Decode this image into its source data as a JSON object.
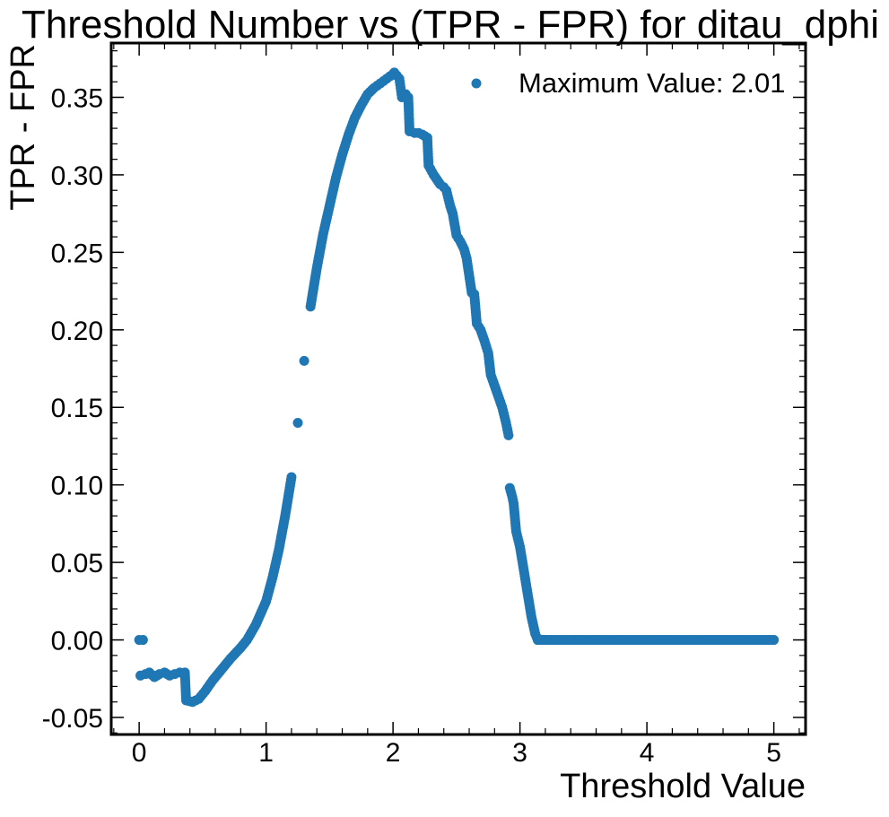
{
  "chart_data": {
    "type": "scatter",
    "title": "Threshold Number vs (TPR - FPR) for ditau_dphi",
    "xlabel": "Threshold Value",
    "ylabel": "TPR - FPR",
    "xlim": [
      -0.22,
      5.25
    ],
    "ylim": [
      -0.061,
      0.385
    ],
    "x_ticks": [
      0,
      1,
      2,
      3,
      4,
      5
    ],
    "x_tick_labels": [
      "0",
      "1",
      "2",
      "3",
      "4",
      "5"
    ],
    "y_ticks": [
      -0.05,
      0.0,
      0.05,
      0.1,
      0.15,
      0.2,
      0.25,
      0.3,
      0.35
    ],
    "y_tick_labels": [
      "-0.05",
      "0.00",
      "0.05",
      "0.10",
      "0.15",
      "0.20",
      "0.25",
      "0.30",
      "0.35"
    ],
    "grid": false,
    "legend": {
      "position": "top-right",
      "entries": [
        {
          "label": "Maximum Value: 2.01"
        }
      ]
    },
    "colors": {
      "series": "#1f77b4",
      "axes": "#000000",
      "background": "#ffffff"
    },
    "series": [
      {
        "name": "Maximum Value: 2.01",
        "curve_points": [
          [
            0.0,
            0.0
          ],
          [
            0.03,
            0.0
          ],
          [
            0.01,
            -0.023
          ],
          [
            0.05,
            -0.022
          ],
          [
            0.08,
            -0.021
          ],
          [
            0.12,
            -0.024
          ],
          [
            0.16,
            -0.022
          ],
          [
            0.2,
            -0.021
          ],
          [
            0.24,
            -0.023
          ],
          [
            0.28,
            -0.022
          ],
          [
            0.32,
            -0.021
          ],
          [
            0.36,
            -0.021
          ],
          [
            0.37,
            -0.039
          ],
          [
            0.42,
            -0.04
          ],
          [
            0.47,
            -0.038
          ],
          [
            0.52,
            -0.033
          ],
          [
            0.58,
            -0.026
          ],
          [
            0.65,
            -0.019
          ],
          [
            0.72,
            -0.012
          ],
          [
            0.8,
            -0.005
          ],
          [
            0.85,
            0.0
          ],
          [
            0.92,
            0.01
          ],
          [
            1.0,
            0.025
          ],
          [
            1.05,
            0.04
          ],
          [
            1.1,
            0.058
          ],
          [
            1.15,
            0.08
          ],
          [
            1.2,
            0.105
          ],
          [
            1.25,
            0.14
          ],
          [
            1.3,
            0.18
          ],
          [
            1.35,
            0.215
          ],
          [
            1.4,
            0.24
          ],
          [
            1.45,
            0.262
          ],
          [
            1.5,
            0.28
          ],
          [
            1.55,
            0.298
          ],
          [
            1.6,
            0.313
          ],
          [
            1.65,
            0.326
          ],
          [
            1.7,
            0.337
          ],
          [
            1.75,
            0.345
          ],
          [
            1.8,
            0.352
          ],
          [
            1.85,
            0.356
          ],
          [
            1.9,
            0.359
          ],
          [
            1.95,
            0.362
          ],
          [
            2.0,
            0.365
          ],
          [
            2.01,
            0.366
          ],
          [
            2.03,
            0.364
          ],
          [
            2.05,
            0.362
          ],
          [
            2.07,
            0.35
          ],
          [
            2.1,
            0.352
          ],
          [
            2.12,
            0.35
          ],
          [
            2.13,
            0.328
          ],
          [
            2.17,
            0.327
          ],
          [
            2.2,
            0.327
          ],
          [
            2.23,
            0.326
          ],
          [
            2.27,
            0.324
          ],
          [
            2.28,
            0.306
          ],
          [
            2.32,
            0.3
          ],
          [
            2.37,
            0.294
          ],
          [
            2.4,
            0.292
          ],
          [
            2.42,
            0.29
          ],
          [
            2.45,
            0.28
          ],
          [
            2.47,
            0.275
          ],
          [
            2.5,
            0.261
          ],
          [
            2.53,
            0.257
          ],
          [
            2.56,
            0.252
          ],
          [
            2.58,
            0.246
          ],
          [
            2.62,
            0.224
          ],
          [
            2.64,
            0.223
          ],
          [
            2.66,
            0.204
          ],
          [
            2.69,
            0.2
          ],
          [
            2.72,
            0.193
          ],
          [
            2.75,
            0.185
          ],
          [
            2.77,
            0.171
          ],
          [
            2.8,
            0.164
          ],
          [
            2.83,
            0.157
          ],
          [
            2.86,
            0.15
          ],
          [
            2.89,
            0.14
          ],
          [
            2.91,
            0.132
          ],
          [
            2.92,
            0.098
          ],
          [
            2.94,
            0.092
          ],
          [
            2.95,
            0.088
          ],
          [
            2.97,
            0.07
          ],
          [
            3.0,
            0.06
          ],
          [
            3.03,
            0.045
          ],
          [
            3.06,
            0.03
          ],
          [
            3.09,
            0.015
          ],
          [
            3.12,
            0.004
          ],
          [
            3.14,
            0.0
          ],
          [
            3.2,
            0.0
          ]
        ],
        "flat_segment": {
          "x_start": 3.14,
          "x_end": 5.0,
          "y": 0.0
        }
      }
    ]
  }
}
